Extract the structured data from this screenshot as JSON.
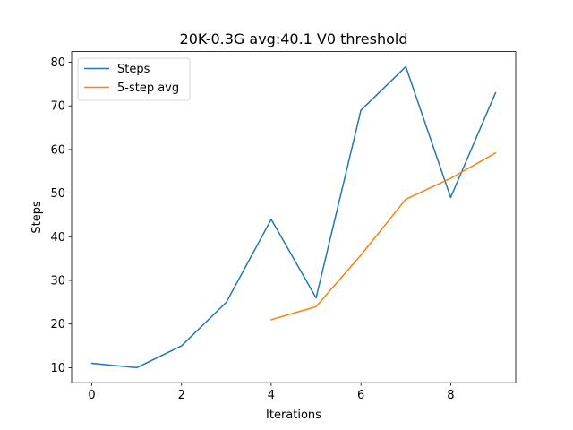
{
  "chart_data": {
    "type": "line",
    "title": "20K-0.3G avg:40.1 V0 threshold",
    "xlabel": "Iterations",
    "ylabel": "Steps",
    "xlim": [
      -0.45,
      9.45
    ],
    "ylim": [
      6.55,
      82.45
    ],
    "xticks": [
      0,
      2,
      4,
      6,
      8
    ],
    "yticks": [
      10,
      20,
      30,
      40,
      50,
      60,
      70,
      80
    ],
    "grid": false,
    "legend_position": "upper-left",
    "series": [
      {
        "name": "Steps",
        "color": "#1f77b4",
        "x": [
          0,
          1,
          2,
          3,
          4,
          5,
          6,
          7,
          8,
          9
        ],
        "y": [
          11,
          10,
          15,
          25,
          44,
          26,
          69,
          79,
          49,
          73
        ]
      },
      {
        "name": "5-step avg",
        "color": "#ff7f0e",
        "x": [
          4,
          5,
          6,
          7,
          8,
          9
        ],
        "y": [
          21.0,
          24.0,
          35.8,
          48.6,
          53.4,
          59.2
        ]
      }
    ]
  }
}
